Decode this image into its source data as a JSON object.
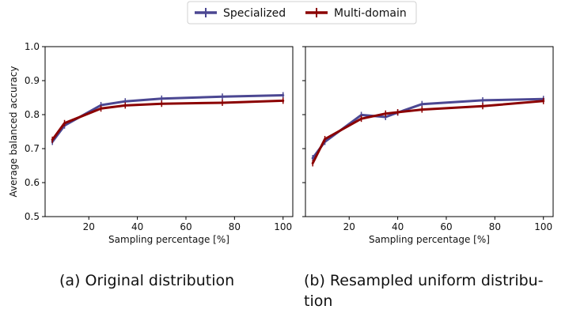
{
  "legend": {
    "placement": "top-center",
    "entries": [
      {
        "label": "Specialized",
        "color": "#4b4792"
      },
      {
        "label": "Multi-domain",
        "color": "#8b0000"
      }
    ]
  },
  "captions": {
    "a": "(a) Original distribution",
    "b_line1": "(b) Resampled uniform distribu-",
    "b_line2": "tion"
  },
  "chart_data": [
    {
      "type": "line",
      "panel": "a",
      "xlabel": "Sampling percentage [%]",
      "ylabel": "Average balanced accuracy",
      "xlim": [
        2,
        104
      ],
      "ylim": [
        0.5,
        1.0
      ],
      "xticks": [
        20,
        40,
        60,
        80,
        100
      ],
      "yticks": [
        0.5,
        0.6,
        0.7,
        0.8,
        0.9,
        1.0
      ],
      "ytick_labels": [
        "0.5",
        "0.6",
        "0.7",
        "0.8",
        "0.9",
        "1.0"
      ],
      "grid": false,
      "x": [
        5,
        10,
        25,
        35,
        50,
        75,
        100
      ],
      "series": [
        {
          "name": "Specialized",
          "color": "#4b4792",
          "values": [
            0.72,
            0.768,
            0.828,
            0.839,
            0.847,
            0.853,
            0.857
          ]
        },
        {
          "name": "Multi-domain",
          "color": "#8b0000",
          "values": [
            0.726,
            0.775,
            0.818,
            0.827,
            0.832,
            0.835,
            0.841
          ]
        }
      ]
    },
    {
      "type": "line",
      "panel": "b",
      "xlabel": "Sampling percentage [%]",
      "ylabel": "",
      "xlim": [
        2,
        104
      ],
      "ylim": [
        0.5,
        1.0
      ],
      "xticks": [
        20,
        40,
        60,
        80,
        100
      ],
      "yticks": [
        0.5,
        0.6,
        0.7,
        0.8,
        0.9,
        1.0
      ],
      "ytick_labels": [],
      "grid": false,
      "x": [
        5,
        10,
        25,
        35,
        40,
        50,
        75,
        100
      ],
      "series": [
        {
          "name": "Specialized",
          "color": "#4b4792",
          "values": [
            0.672,
            0.72,
            0.799,
            0.793,
            0.806,
            0.831,
            0.842,
            0.846
          ]
        },
        {
          "name": "Multi-domain",
          "color": "#8b0000",
          "values": [
            0.657,
            0.728,
            0.788,
            0.803,
            0.807,
            0.815,
            0.825,
            0.84
          ]
        }
      ]
    }
  ]
}
